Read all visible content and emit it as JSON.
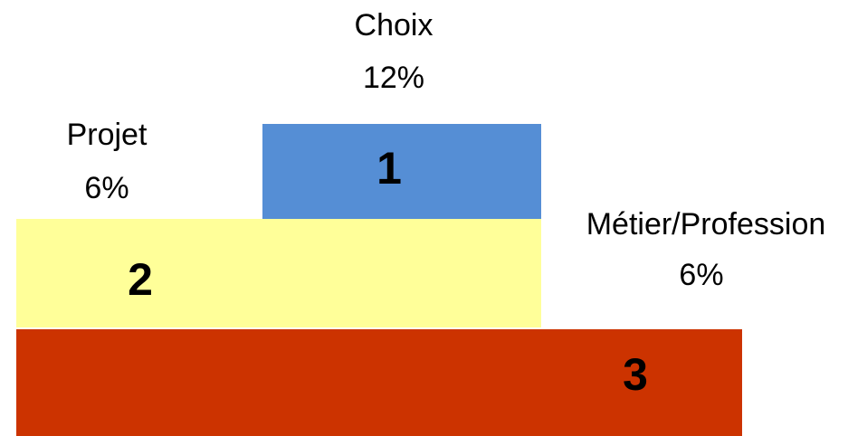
{
  "podium": [
    {
      "rank": "1",
      "label": "Choix",
      "share": "12%"
    },
    {
      "rank": "2",
      "label": "Projet",
      "share": "6%"
    },
    {
      "rank": "3",
      "label": "Métier/Profession",
      "share": "6%"
    }
  ]
}
